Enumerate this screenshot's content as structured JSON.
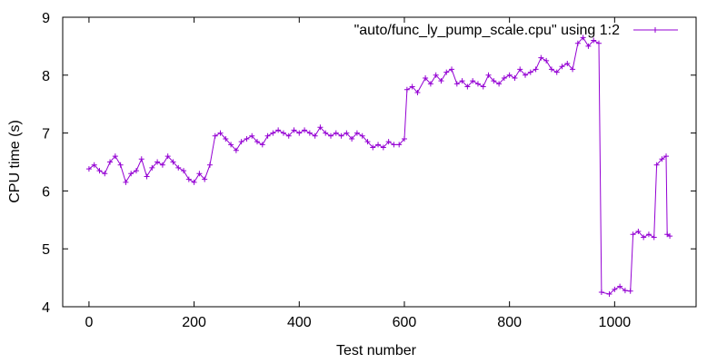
{
  "chart_data": {
    "type": "line",
    "xlabel": "Test number",
    "ylabel": "CPU time (s)",
    "xlim": [
      -50,
      1155
    ],
    "ylim": [
      4,
      9
    ],
    "xticks": [
      0,
      200,
      400,
      600,
      800,
      1000
    ],
    "yticks": [
      4,
      5,
      6,
      7,
      8,
      9
    ],
    "grid": false,
    "legend_position": "top-right",
    "marker": "plus",
    "series": [
      {
        "name": "\"auto/func_ly_pump_scale.cpu\" using 1:2",
        "color": "#9400d3",
        "points": [
          [
            0,
            6.38
          ],
          [
            10,
            6.45
          ],
          [
            20,
            6.35
          ],
          [
            30,
            6.3
          ],
          [
            40,
            6.5
          ],
          [
            50,
            6.6
          ],
          [
            60,
            6.45
          ],
          [
            70,
            6.15
          ],
          [
            80,
            6.3
          ],
          [
            90,
            6.35
          ],
          [
            100,
            6.55
          ],
          [
            110,
            6.25
          ],
          [
            120,
            6.4
          ],
          [
            130,
            6.5
          ],
          [
            140,
            6.45
          ],
          [
            150,
            6.6
          ],
          [
            160,
            6.5
          ],
          [
            170,
            6.4
          ],
          [
            180,
            6.35
          ],
          [
            190,
            6.2
          ],
          [
            200,
            6.15
          ],
          [
            210,
            6.3
          ],
          [
            220,
            6.2
          ],
          [
            230,
            6.45
          ],
          [
            240,
            6.95
          ],
          [
            250,
            7.0
          ],
          [
            260,
            6.9
          ],
          [
            270,
            6.8
          ],
          [
            280,
            6.7
          ],
          [
            290,
            6.85
          ],
          [
            300,
            6.9
          ],
          [
            310,
            6.95
          ],
          [
            320,
            6.85
          ],
          [
            330,
            6.8
          ],
          [
            340,
            6.95
          ],
          [
            350,
            7.0
          ],
          [
            360,
            7.05
          ],
          [
            370,
            7.0
          ],
          [
            380,
            6.95
          ],
          [
            390,
            7.05
          ],
          [
            400,
            7.0
          ],
          [
            410,
            7.05
          ],
          [
            420,
            7.0
          ],
          [
            430,
            6.95
          ],
          [
            440,
            7.1
          ],
          [
            450,
            7.0
          ],
          [
            460,
            6.95
          ],
          [
            470,
            7.0
          ],
          [
            480,
            6.95
          ],
          [
            490,
            7.0
          ],
          [
            500,
            6.9
          ],
          [
            510,
            7.0
          ],
          [
            520,
            6.95
          ],
          [
            530,
            6.85
          ],
          [
            540,
            6.75
          ],
          [
            550,
            6.8
          ],
          [
            560,
            6.75
          ],
          [
            570,
            6.85
          ],
          [
            580,
            6.8
          ],
          [
            590,
            6.8
          ],
          [
            600,
            6.9
          ],
          [
            605,
            7.75
          ],
          [
            615,
            7.8
          ],
          [
            625,
            7.7
          ],
          [
            640,
            7.95
          ],
          [
            650,
            7.85
          ],
          [
            660,
            8.0
          ],
          [
            670,
            7.9
          ],
          [
            680,
            8.05
          ],
          [
            690,
            8.1
          ],
          [
            700,
            7.85
          ],
          [
            710,
            7.9
          ],
          [
            720,
            7.8
          ],
          [
            730,
            7.9
          ],
          [
            740,
            7.85
          ],
          [
            750,
            7.8
          ],
          [
            760,
            8.0
          ],
          [
            770,
            7.9
          ],
          [
            780,
            7.85
          ],
          [
            790,
            7.95
          ],
          [
            800,
            8.0
          ],
          [
            810,
            7.95
          ],
          [
            820,
            8.1
          ],
          [
            830,
            8.0
          ],
          [
            840,
            8.05
          ],
          [
            850,
            8.1
          ],
          [
            860,
            8.3
          ],
          [
            870,
            8.25
          ],
          [
            880,
            8.1
          ],
          [
            890,
            8.05
          ],
          [
            900,
            8.15
          ],
          [
            910,
            8.2
          ],
          [
            920,
            8.1
          ],
          [
            930,
            8.55
          ],
          [
            940,
            8.65
          ],
          [
            950,
            8.5
          ],
          [
            960,
            8.6
          ],
          [
            970,
            8.55
          ],
          [
            975,
            4.25
          ],
          [
            990,
            4.22
          ],
          [
            1000,
            4.3
          ],
          [
            1010,
            4.35
          ],
          [
            1020,
            4.28
          ],
          [
            1030,
            4.27
          ],
          [
            1035,
            5.25
          ],
          [
            1045,
            5.3
          ],
          [
            1055,
            5.2
          ],
          [
            1065,
            5.25
          ],
          [
            1075,
            5.2
          ],
          [
            1080,
            6.45
          ],
          [
            1090,
            6.55
          ],
          [
            1098,
            6.6
          ],
          [
            1100,
            5.25
          ],
          [
            1105,
            5.22
          ]
        ]
      }
    ]
  }
}
